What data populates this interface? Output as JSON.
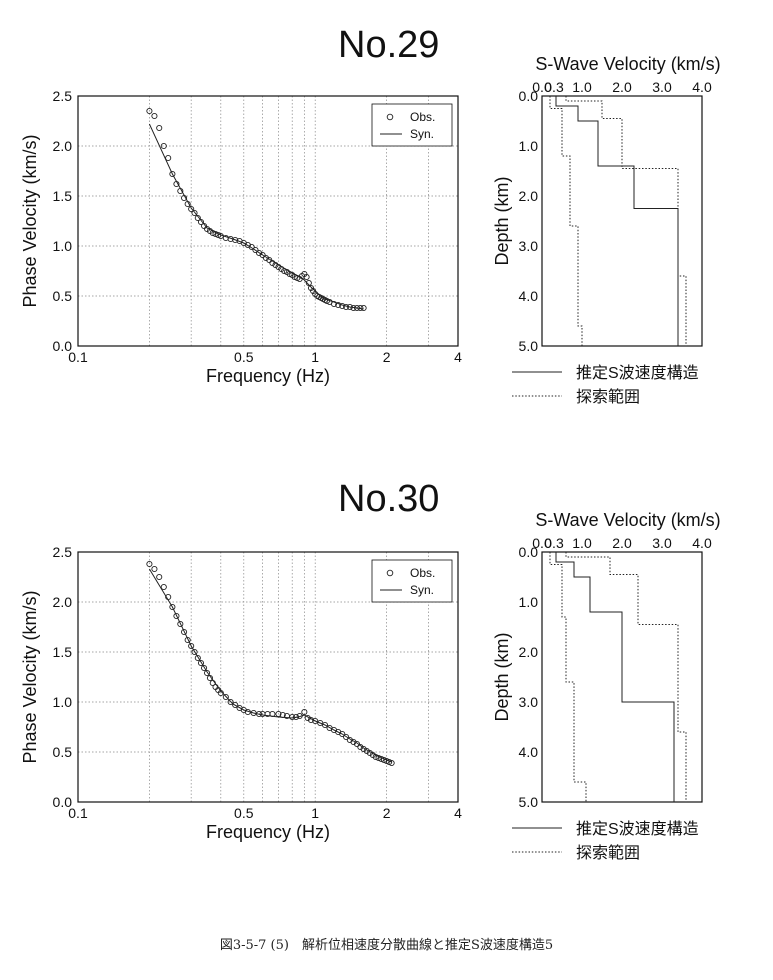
{
  "stations": [
    {
      "title": "No.29",
      "dispersion": {
        "type": "scatter",
        "xlabel": "Frequency (Hz)",
        "ylabel": "Phase Velocity (km/s)",
        "x_scale": "log",
        "xlim": [
          0.1,
          4
        ],
        "ylim": [
          0.0,
          2.5
        ],
        "x_ticks": [
          0.1,
          0.5,
          1,
          2,
          4
        ],
        "x_tick_labels": [
          "0.1",
          "0.5",
          "1",
          "2",
          "4"
        ],
        "y_ticks": [
          0.0,
          0.5,
          1.0,
          1.5,
          2.0,
          2.5
        ],
        "y_tick_labels": [
          "0.0",
          "0.5",
          "1.0",
          "1.5",
          "2.0",
          "2.5"
        ],
        "grid": true,
        "legend_position": "top-right",
        "series": [
          {
            "name": "Obs.",
            "marker": "open-circle",
            "x": [
              0.2,
              0.21,
              0.22,
              0.23,
              0.24,
              0.25,
              0.26,
              0.27,
              0.28,
              0.29,
              0.3,
              0.31,
              0.32,
              0.33,
              0.34,
              0.35,
              0.36,
              0.37,
              0.38,
              0.39,
              0.4,
              0.42,
              0.44,
              0.46,
              0.48,
              0.5,
              0.52,
              0.54,
              0.56,
              0.58,
              0.6,
              0.62,
              0.64,
              0.66,
              0.68,
              0.7,
              0.72,
              0.74,
              0.76,
              0.78,
              0.8,
              0.82,
              0.84,
              0.86,
              0.88,
              0.9,
              0.92,
              0.94,
              0.96,
              0.98,
              1.0,
              1.02,
              1.04,
              1.06,
              1.08,
              1.1,
              1.12,
              1.15,
              1.2,
              1.25,
              1.3,
              1.35,
              1.4,
              1.45,
              1.5,
              1.55,
              1.6
            ],
            "y": [
              2.35,
              2.3,
              2.18,
              2.0,
              1.88,
              1.72,
              1.62,
              1.55,
              1.48,
              1.42,
              1.37,
              1.33,
              1.28,
              1.24,
              1.2,
              1.17,
              1.15,
              1.13,
              1.12,
              1.11,
              1.1,
              1.08,
              1.07,
              1.06,
              1.05,
              1.03,
              1.01,
              0.99,
              0.96,
              0.93,
              0.91,
              0.88,
              0.86,
              0.83,
              0.81,
              0.79,
              0.77,
              0.75,
              0.74,
              0.72,
              0.71,
              0.69,
              0.68,
              0.67,
              0.7,
              0.72,
              0.69,
              0.63,
              0.58,
              0.55,
              0.52,
              0.5,
              0.49,
              0.48,
              0.47,
              0.46,
              0.45,
              0.44,
              0.42,
              0.41,
              0.4,
              0.39,
              0.39,
              0.38,
              0.38,
              0.38,
              0.38
            ]
          },
          {
            "name": "Syn.",
            "marker": "line",
            "x": [
              0.2,
              0.25,
              0.3,
              0.35,
              0.4,
              0.45,
              0.5,
              0.55,
              0.6,
              0.65,
              0.7,
              0.75,
              0.8,
              0.85,
              0.9,
              0.95,
              1.0,
              1.05,
              1.1,
              1.2,
              1.3,
              1.4,
              1.5,
              1.6
            ],
            "y": [
              2.22,
              1.72,
              1.38,
              1.18,
              1.11,
              1.07,
              1.03,
              0.97,
              0.91,
              0.86,
              0.81,
              0.77,
              0.73,
              0.7,
              0.66,
              0.6,
              0.55,
              0.5,
              0.47,
              0.44,
              0.41,
              0.39,
              0.38,
              0.37
            ]
          }
        ]
      },
      "profile": {
        "type": "line",
        "title": "S-Wave Velocity (km/s)",
        "ylabel": "Depth (km)",
        "xlim": [
          0.0,
          4.0
        ],
        "ylim": [
          0.0,
          5.0
        ],
        "x_ticks": [
          0.0,
          0.3,
          1.0,
          2.0,
          3.0,
          4.0
        ],
        "x_tick_labels": [
          "0.0",
          "0.3",
          "1.0",
          "2.0",
          "3.0",
          "4.0"
        ],
        "y_ticks": [
          0.0,
          1.0,
          2.0,
          3.0,
          4.0,
          5.0
        ],
        "y_tick_labels": [
          "0.0",
          "1.0",
          "2.0",
          "3.0",
          "4.0",
          "5.0"
        ],
        "series": [
          {
            "name": "推定S波速度構造",
            "style": "solid",
            "velocity": [
              0.35,
              0.35,
              0.9,
              0.9,
              1.4,
              1.4,
              2.3,
              2.3,
              3.4,
              3.4
            ],
            "depth": [
              0.0,
              0.2,
              0.2,
              0.5,
              0.5,
              1.4,
              1.4,
              2.25,
              2.25,
              5.0
            ]
          },
          {
            "name": "探索範囲",
            "style": "dotted-lower",
            "velocity": [
              0.2,
              0.2,
              0.5,
              0.5,
              0.7,
              0.7,
              0.9,
              0.9,
              1.0,
              1.0
            ],
            "depth": [
              0.0,
              0.25,
              0.25,
              1.2,
              1.2,
              2.6,
              2.6,
              4.6,
              4.6,
              5.0
            ]
          },
          {
            "name": "探索範囲",
            "style": "dotted-upper",
            "velocity": [
              0.6,
              0.6,
              1.5,
              1.5,
              2.0,
              2.0,
              3.4,
              3.4,
              3.6,
              3.6
            ],
            "depth": [
              0.0,
              0.1,
              0.1,
              0.45,
              0.45,
              1.45,
              1.45,
              3.6,
              3.6,
              5.0
            ]
          }
        ]
      },
      "legend": {
        "solid_label": "推定S波速度構造",
        "dotted_label": "探索範囲"
      }
    },
    {
      "title": "No.30",
      "dispersion": {
        "type": "scatter",
        "xlabel": "Frequency (Hz)",
        "ylabel": "Phase Velocity (km/s)",
        "x_scale": "log",
        "xlim": [
          0.1,
          4
        ],
        "ylim": [
          0.0,
          2.5
        ],
        "x_ticks": [
          0.1,
          0.5,
          1,
          2,
          4
        ],
        "x_tick_labels": [
          "0.1",
          "0.5",
          "1",
          "2",
          "4"
        ],
        "y_ticks": [
          0.0,
          0.5,
          1.0,
          1.5,
          2.0,
          2.5
        ],
        "y_tick_labels": [
          "0.0",
          "0.5",
          "1.0",
          "1.5",
          "2.0",
          "2.5"
        ],
        "grid": true,
        "legend_position": "top-right",
        "series": [
          {
            "name": "Obs.",
            "marker": "open-circle",
            "x": [
              0.2,
              0.21,
              0.22,
              0.23,
              0.24,
              0.25,
              0.26,
              0.27,
              0.28,
              0.29,
              0.3,
              0.31,
              0.32,
              0.33,
              0.34,
              0.35,
              0.36,
              0.37,
              0.38,
              0.39,
              0.4,
              0.42,
              0.44,
              0.46,
              0.48,
              0.5,
              0.52,
              0.55,
              0.58,
              0.6,
              0.63,
              0.66,
              0.7,
              0.73,
              0.76,
              0.8,
              0.83,
              0.86,
              0.9,
              0.93,
              0.96,
              1.0,
              1.05,
              1.1,
              1.15,
              1.2,
              1.25,
              1.3,
              1.35,
              1.4,
              1.45,
              1.5,
              1.55,
              1.6,
              1.65,
              1.7,
              1.75,
              1.8,
              1.85,
              1.9,
              1.95,
              2.0,
              2.05,
              2.1
            ],
            "y": [
              2.38,
              2.33,
              2.25,
              2.15,
              2.05,
              1.95,
              1.86,
              1.78,
              1.7,
              1.62,
              1.56,
              1.5,
              1.44,
              1.39,
              1.34,
              1.29,
              1.24,
              1.19,
              1.15,
              1.12,
              1.09,
              1.05,
              1.0,
              0.97,
              0.94,
              0.92,
              0.9,
              0.89,
              0.88,
              0.88,
              0.88,
              0.88,
              0.88,
              0.87,
              0.86,
              0.85,
              0.85,
              0.86,
              0.9,
              0.84,
              0.82,
              0.81,
              0.79,
              0.77,
              0.74,
              0.72,
              0.7,
              0.68,
              0.65,
              0.62,
              0.6,
              0.58,
              0.55,
              0.53,
              0.51,
              0.49,
              0.47,
              0.45,
              0.44,
              0.43,
              0.42,
              0.41,
              0.4,
              0.39
            ]
          },
          {
            "name": "Syn.",
            "marker": "line",
            "x": [
              0.2,
              0.25,
              0.3,
              0.35,
              0.4,
              0.45,
              0.5,
              0.55,
              0.6,
              0.7,
              0.8,
              0.85,
              0.9,
              1.0,
              1.1,
              1.2,
              1.3,
              1.4,
              1.5,
              1.6,
              1.8,
              2.0,
              2.1
            ],
            "y": [
              2.33,
              1.95,
              1.56,
              1.3,
              1.11,
              0.98,
              0.92,
              0.89,
              0.87,
              0.85,
              0.84,
              0.85,
              0.87,
              0.81,
              0.77,
              0.72,
              0.68,
              0.63,
              0.59,
              0.54,
              0.47,
              0.42,
              0.4
            ]
          }
        ]
      },
      "profile": {
        "type": "line",
        "title": "S-Wave Velocity (km/s)",
        "ylabel": "Depth (km)",
        "xlim": [
          0.0,
          4.0
        ],
        "ylim": [
          0.0,
          5.0
        ],
        "x_ticks": [
          0.0,
          0.3,
          1.0,
          2.0,
          3.0,
          4.0
        ],
        "x_tick_labels": [
          "0.0",
          "0.3",
          "1.0",
          "2.0",
          "3.0",
          "4.0"
        ],
        "y_ticks": [
          0.0,
          1.0,
          2.0,
          3.0,
          4.0,
          5.0
        ],
        "y_tick_labels": [
          "0.0",
          "1.0",
          "2.0",
          "3.0",
          "4.0",
          "5.0"
        ],
        "series": [
          {
            "name": "推定S波速度構造",
            "style": "solid",
            "velocity": [
              0.35,
              0.35,
              0.8,
              0.8,
              1.2,
              1.2,
              2.0,
              2.0,
              3.3,
              3.3
            ],
            "depth": [
              0.0,
              0.2,
              0.2,
              0.5,
              0.5,
              1.2,
              1.2,
              3.0,
              3.0,
              5.0
            ]
          },
          {
            "name": "探索範囲",
            "style": "dotted-lower",
            "velocity": [
              0.2,
              0.2,
              0.5,
              0.5,
              0.6,
              0.6,
              0.8,
              0.8,
              1.1,
              1.1
            ],
            "depth": [
              0.0,
              0.25,
              0.25,
              1.3,
              1.3,
              2.6,
              2.6,
              4.6,
              4.6,
              5.0
            ]
          },
          {
            "name": "探索範囲",
            "style": "dotted-upper",
            "velocity": [
              0.6,
              0.6,
              1.7,
              1.7,
              2.4,
              2.4,
              3.4,
              3.4,
              3.6,
              3.6
            ],
            "depth": [
              0.0,
              0.1,
              0.1,
              0.45,
              0.45,
              1.45,
              1.45,
              3.6,
              3.6,
              5.0
            ]
          }
        ]
      },
      "legend": {
        "solid_label": "推定S波速度構造",
        "dotted_label": "探索範囲"
      }
    }
  ],
  "caption": "図3-5-7 (5)　解析位相速度分散曲線と推定S波速度構造5"
}
